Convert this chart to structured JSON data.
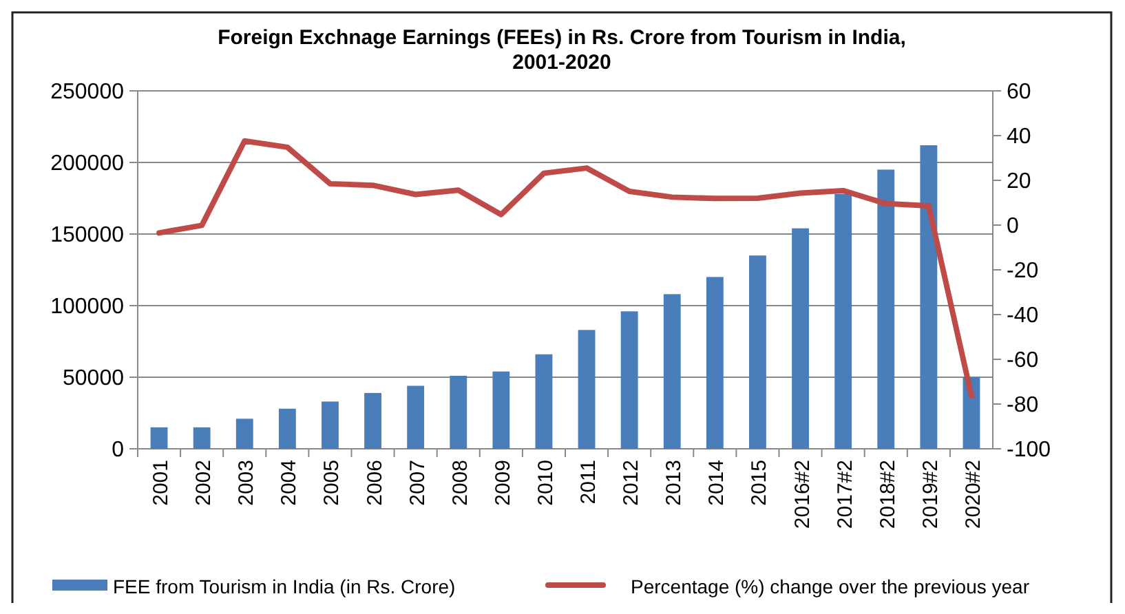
{
  "chart_data": {
    "type": "bar",
    "title": "Foreign Exchnage Earnings (FEEs) in Rs. Crore from Tourism in India, 2001-2020",
    "categories": [
      "2001",
      "2002",
      "2003",
      "2004",
      "2005",
      "2006",
      "2007",
      "2008",
      "2009",
      "2010",
      "2011",
      "2012",
      "2013",
      "2014",
      "2015",
      "2016#2",
      "2017#2",
      "2018#2",
      "2019#2",
      "2020#2"
    ],
    "series": [
      {
        "name": "FEE from Tourism in India (in Rs. Crore)",
        "color": "#4a7ebb",
        "values": [
          15000,
          15000,
          21000,
          28000,
          33000,
          39000,
          44000,
          51000,
          54000,
          66000,
          83000,
          96000,
          108000,
          120000,
          135000,
          154000,
          178000,
          195000,
          212000,
          50000
        ]
      },
      {
        "name": "Percentage (%) change over the previous year",
        "type": "line",
        "axis": "y2",
        "color": "#be4b48",
        "values": [
          -3.5,
          -0.1,
          37.6,
          34.8,
          18.5,
          17.8,
          13.7,
          15.6,
          4.7,
          23.2,
          25.5,
          15.1,
          12.5,
          11.9,
          12.0,
          14.3,
          15.4,
          9.6,
          8.6,
          -76.3
        ]
      }
    ],
    "ylim": [
      0,
      250000
    ],
    "yticks": [
      0,
      50000,
      100000,
      150000,
      200000,
      250000
    ],
    "y2lim": [
      -100,
      60
    ],
    "y2ticks": [
      -100,
      -80,
      -60,
      -40,
      -20,
      0,
      20,
      40,
      60
    ],
    "grid": "y",
    "legend": "bottom",
    "marker": "none",
    "line_style": "solid"
  }
}
